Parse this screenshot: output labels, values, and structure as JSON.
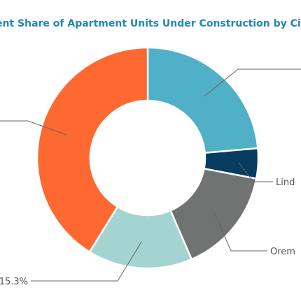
{
  "chart_data": {
    "type": "pie",
    "donut": true,
    "title": "ent Share of Apartment Units Under Construction by Cit",
    "slices": [
      {
        "label": "",
        "value": 23.6,
        "color": "#4fb0c8"
      },
      {
        "label": "Lind",
        "value": 4.4,
        "color": "#073b5f"
      },
      {
        "label": "Orem",
        "value": 15.5,
        "color": "#717372"
      },
      {
        "label": "15.3%",
        "value": 15.3,
        "color": "#a4d4d1"
      },
      {
        "label": "",
        "value": 41.2,
        "color": "#fd6930"
      }
    ],
    "legend": "none"
  },
  "colors": {
    "title": "#2386b4",
    "callout_text": "#555555",
    "leader": "#666666",
    "separator": "#ffffff"
  }
}
